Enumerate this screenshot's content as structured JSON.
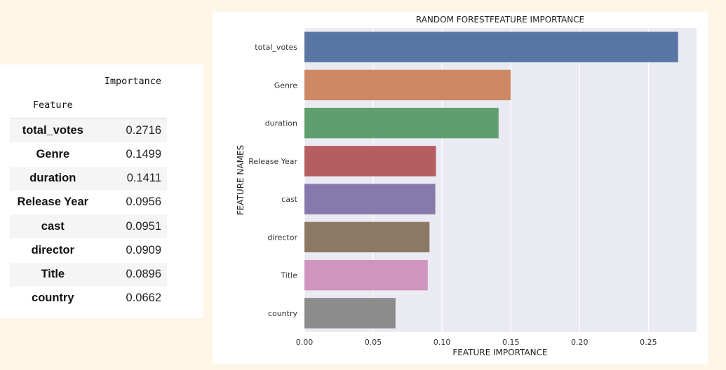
{
  "table": {
    "header_importance": "Importance",
    "index_name": "Feature",
    "rows": [
      {
        "feature": "total_votes",
        "importance": "0.2716"
      },
      {
        "feature": "Genre",
        "importance": "0.1499"
      },
      {
        "feature": "duration",
        "importance": "0.1411"
      },
      {
        "feature": "Release Year",
        "importance": "0.0956"
      },
      {
        "feature": "cast",
        "importance": "0.0951"
      },
      {
        "feature": "director",
        "importance": "0.0909"
      },
      {
        "feature": "Title",
        "importance": "0.0896"
      },
      {
        "feature": "country",
        "importance": "0.0662"
      }
    ]
  },
  "chart_data": {
    "type": "bar",
    "orientation": "horizontal",
    "title": "RANDOM FORESTFEATURE IMPORTANCE",
    "xlabel": "FEATURE IMPORTANCE",
    "ylabel": "FEATURE NAMES",
    "categories": [
      "total_votes",
      "Genre",
      "duration",
      "Release Year",
      "cast",
      "director",
      "Title",
      "country"
    ],
    "values": [
      0.2716,
      0.1499,
      0.1411,
      0.0956,
      0.0951,
      0.0909,
      0.0896,
      0.0662
    ],
    "colors": [
      "#5975a4",
      "#cc8963",
      "#5f9e6e",
      "#b55d60",
      "#857aab",
      "#8d7866",
      "#d095bf",
      "#8c8c8c"
    ],
    "xticks": [
      "0.00",
      "0.05",
      "0.10",
      "0.15",
      "0.20",
      "0.25"
    ],
    "xlim": [
      0,
      0.285
    ],
    "grid": true,
    "background": "#eaeaf2"
  }
}
